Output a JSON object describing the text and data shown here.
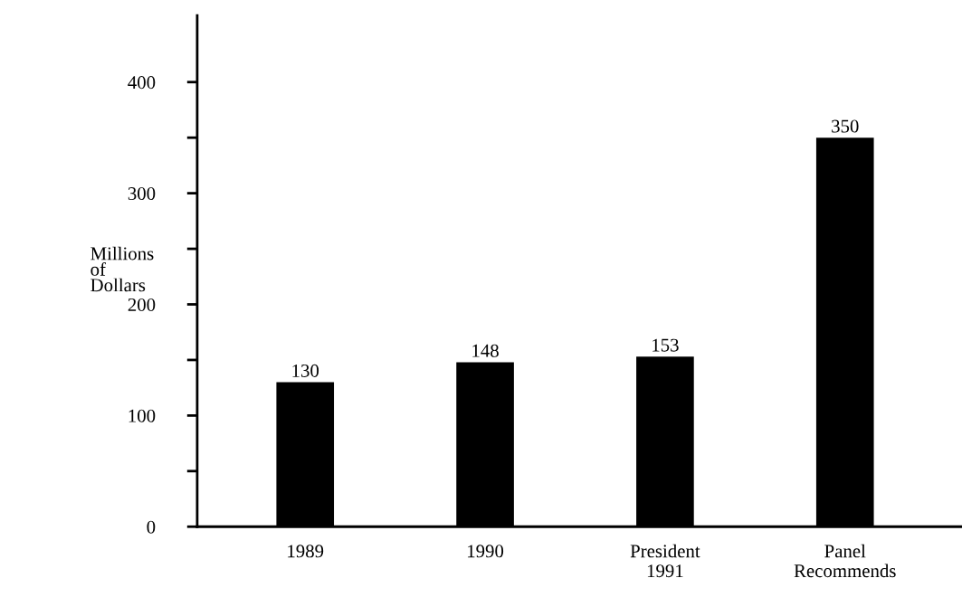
{
  "chart_data": {
    "type": "bar",
    "ylabel": "Millions\nof\nDollars",
    "categories": [
      "1989",
      "1990",
      "President\n1991",
      "Panel\nRecommends"
    ],
    "values": [
      130,
      148,
      153,
      350
    ],
    "color": "#000000",
    "data_labels": true,
    "ylim": [
      0,
      460
    ],
    "yticks": [
      0,
      {
        "value": 50,
        "label": null
      },
      100,
      {
        "value": 150,
        "label": null
      },
      200,
      {
        "value": 250,
        "label": null
      },
      300,
      {
        "value": 350,
        "label": null
      },
      400
    ],
    "grid": false
  }
}
